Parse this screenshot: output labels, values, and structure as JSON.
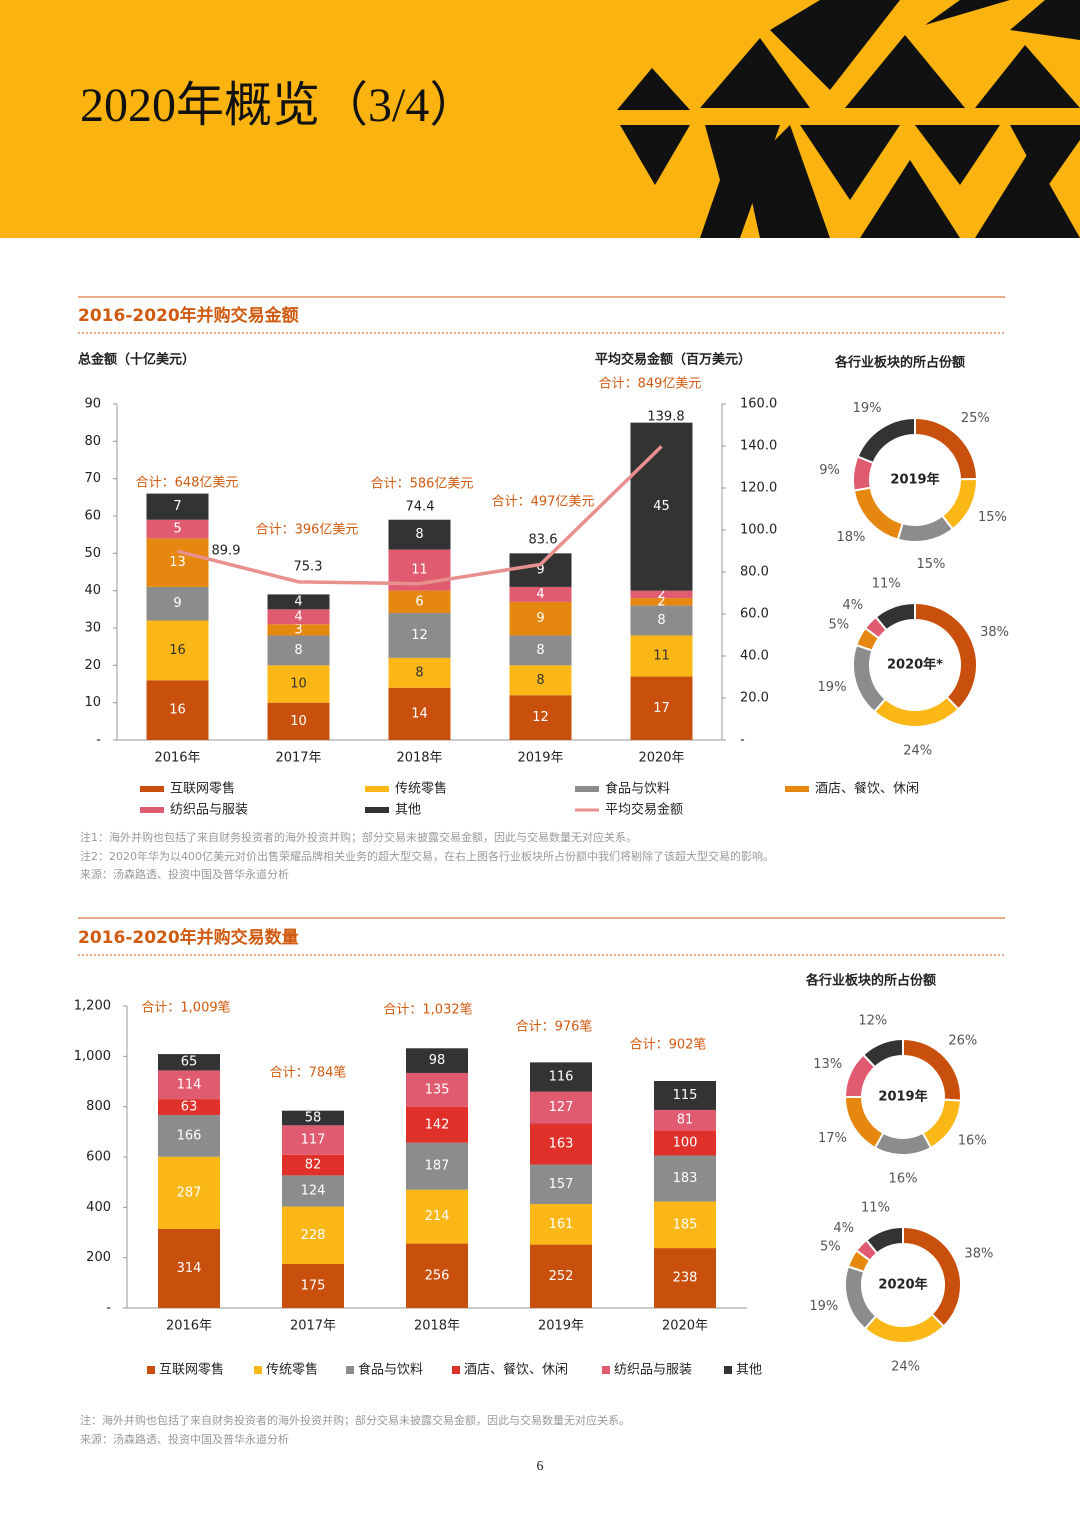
{
  "header": {
    "title": "2020年概览（3/4）"
  },
  "chart_data": [
    {
      "type": "bar",
      "stacked": true,
      "title": "2016-2020年并购交易金额",
      "y_label": "总金额（十亿美元）",
      "y2_label": "平均交易金额（百万美元）",
      "categories": [
        "2016年",
        "2017年",
        "2018年",
        "2019年",
        "2020年"
      ],
      "ylim": [
        0,
        90
      ],
      "yticks": [
        {
          "value": 0,
          "label": "-"
        },
        10,
        20,
        30,
        40,
        50,
        60,
        70,
        80,
        90
      ],
      "y2lim": [
        0,
        160
      ],
      "y2ticks": [
        {
          "value": 0,
          "label": "-"
        },
        {
          "value": 20,
          "label": "20.0"
        },
        {
          "value": 40,
          "label": "40.0"
        },
        {
          "value": 60,
          "label": "60.0"
        },
        {
          "value": 80,
          "label": "80.0"
        },
        {
          "value": 100,
          "label": "100.0"
        },
        {
          "value": 120,
          "label": "120.0"
        },
        {
          "value": 140,
          "label": "140.0"
        },
        {
          "value": 160,
          "label": "160.0"
        }
      ],
      "series": [
        {
          "name": "互联网零售",
          "color": "#c9500c",
          "values": [
            16,
            10,
            14,
            12,
            17
          ]
        },
        {
          "name": "传统零售",
          "color": "#fbb715",
          "values": [
            16,
            10,
            8,
            8,
            11
          ]
        },
        {
          "name": "食品与饮料",
          "color": "#8c8c8c",
          "values": [
            9,
            8,
            12,
            8,
            8
          ]
        },
        {
          "name": "酒店、餐饮、休闲",
          "color": "#e6870f",
          "values": [
            13,
            3,
            6,
            9,
            2
          ]
        },
        {
          "name": "纺织品与服装",
          "color": "#e05a70",
          "values": [
            5,
            4,
            11,
            4,
            2
          ]
        },
        {
          "name": "其他",
          "color": "#333333",
          "values": [
            7,
            4,
            8,
            9,
            45
          ]
        },
        {
          "name": "平均交易金额",
          "type": "line",
          "axis": "y2",
          "color": "#e8908e",
          "values": [
            89.9,
            75.3,
            74.4,
            83.6,
            139.8
          ]
        }
      ],
      "total_labels": [
        "合计：648亿美元",
        "合计：396亿美元",
        "合计：586亿美元",
        "合计：497亿美元",
        "合计：849亿美元"
      ]
    },
    {
      "type": "pie",
      "donut": true,
      "title": "各行业板块的所占份额",
      "center_label": "2019年",
      "values": [
        25,
        15,
        15,
        18,
        9,
        19
      ],
      "value_labels": [
        "25%",
        "15%",
        "15%",
        "18%",
        "9%",
        "19%"
      ],
      "colors": [
        "#c9500c",
        "#fbb715",
        "#8c8c8c",
        "#e6870f",
        "#e05a70",
        "#333333"
      ]
    },
    {
      "type": "pie",
      "donut": true,
      "center_label": "2020年*",
      "values": [
        38,
        24,
        19,
        5,
        4,
        11
      ],
      "value_labels": [
        "38%",
        "24%",
        "19%",
        "5%",
        "4%",
        "11%"
      ],
      "colors": [
        "#c9500c",
        "#fbb715",
        "#8c8c8c",
        "#e6870f",
        "#e05a70",
        "#333333"
      ]
    },
    {
      "type": "bar",
      "stacked": true,
      "title": "2016-2020年并购交易数量",
      "categories": [
        "2016年",
        "2017年",
        "2018年",
        "2019年",
        "2020年"
      ],
      "ylim": [
        0,
        1200
      ],
      "yticks": [
        {
          "value": 0,
          "label": "-"
        },
        200,
        400,
        600,
        800,
        {
          "value": 1000,
          "label": "1,000"
        },
        {
          "value": 1200,
          "label": "1,200"
        }
      ],
      "series": [
        {
          "name": "互联网零售",
          "color": "#c9500c",
          "values": [
            314,
            175,
            256,
            252,
            238
          ]
        },
        {
          "name": "传统零售",
          "color": "#fbb715",
          "values": [
            287,
            228,
            214,
            161,
            185
          ]
        },
        {
          "name": "食品与饮料",
          "color": "#8c8c8c",
          "values": [
            166,
            124,
            187,
            157,
            183
          ]
        },
        {
          "name": "酒店、餐饮、休闲",
          "color": "#e0302a",
          "values": [
            63,
            82,
            142,
            163,
            100
          ]
        },
        {
          "name": "纺织品与服装",
          "color": "#e05a70",
          "values": [
            114,
            117,
            135,
            127,
            81
          ]
        },
        {
          "name": "其他",
          "color": "#333333",
          "values": [
            65,
            58,
            98,
            116,
            115
          ]
        }
      ],
      "total_labels": [
        "合计：1,009笔",
        "合计：784笔",
        "合计：1,032笔",
        "合计：976笔",
        "合计：902笔"
      ]
    },
    {
      "type": "pie",
      "donut": true,
      "title": "各行业板块的所占份额",
      "center_label": "2019年",
      "values": [
        26,
        16,
        16,
        17,
        13,
        12
      ],
      "value_labels": [
        "26%",
        "16%",
        "16%",
        "17%",
        "13%",
        "12%"
      ],
      "colors": [
        "#c9500c",
        "#fbb715",
        "#8c8c8c",
        "#e6870f",
        "#e05a70",
        "#333333"
      ]
    },
    {
      "type": "pie",
      "donut": true,
      "center_label": "2020年",
      "values": [
        38,
        24,
        19,
        5,
        4,
        11
      ],
      "value_labels": [
        "38%",
        "24%",
        "19%",
        "5%",
        "4%",
        "11%"
      ],
      "colors": [
        "#c9500c",
        "#fbb715",
        "#8c8c8c",
        "#e6870f",
        "#e05a70",
        "#333333"
      ]
    }
  ],
  "notes": [
    [
      "注1：海外并购也包括了来自财务投资者的海外投资并购；部分交易未披露交易金额，因此与交易数量无对应关系。",
      "注2：2020年华为以400亿美元对价出售荣耀品牌相关业务的超大型交易，在右上图各行业板块所占份额中我们将剔除了该超大型交易的影响。",
      "来源：汤森路透、投资中国及普华永道分析"
    ],
    [
      "注：海外并购也包括了来自财务投资者的海外投资并购；部分交易未披露交易金额，因此与交易数量无对应关系。",
      "来源：汤森路透、投资中国及普华永道分析"
    ]
  ],
  "page_number": "6"
}
